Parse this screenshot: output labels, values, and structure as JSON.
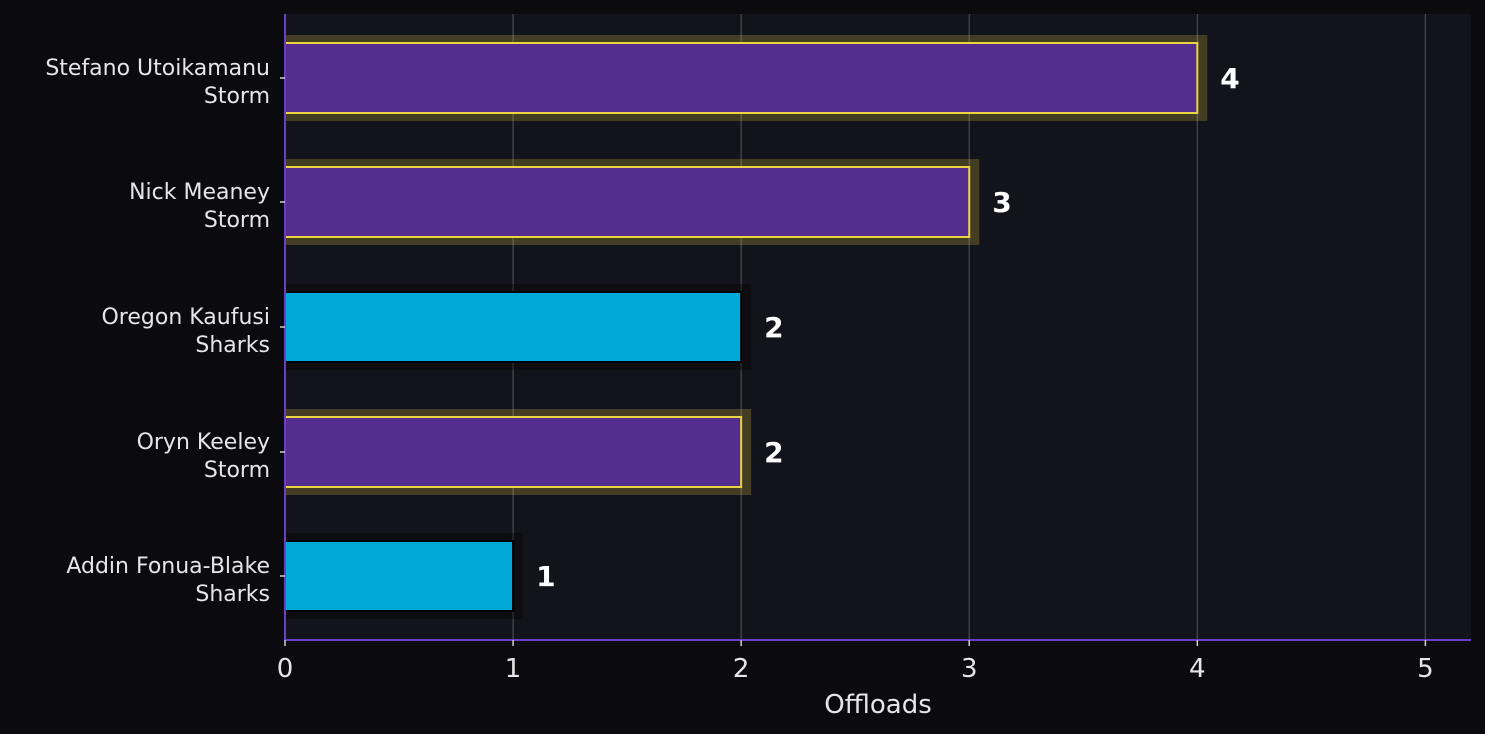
{
  "chart_data": {
    "type": "bar",
    "orientation": "horizontal",
    "categories": [
      {
        "player": "Stefano Utoikamanu",
        "team": "Storm"
      },
      {
        "player": "Nick Meaney",
        "team": "Storm"
      },
      {
        "player": "Oregon Kaufusi",
        "team": "Sharks"
      },
      {
        "player": "Oryn Keeley",
        "team": "Storm"
      },
      {
        "player": "Addin Fonua-Blake",
        "team": "Sharks"
      }
    ],
    "values": [
      4,
      3,
      2,
      2,
      1
    ],
    "data_labels": [
      "4",
      "3",
      "2",
      "2",
      "1"
    ],
    "xlabel": "Offloads",
    "xlim": [
      0,
      5.2
    ],
    "xticks": [
      "0",
      "1",
      "2",
      "3",
      "4",
      "5"
    ],
    "grid": "vertical",
    "colors": {
      "background": "#0b0b0f",
      "plot_background": "#13131b",
      "Storm": "#542d8f",
      "Sharks": "#00a8d8",
      "storm_edge": "#ecd440",
      "sharks_edge": "#000000",
      "axis": "#6a3fc7",
      "grid": "#4a4a52",
      "text": "#e6e6e6"
    }
  }
}
